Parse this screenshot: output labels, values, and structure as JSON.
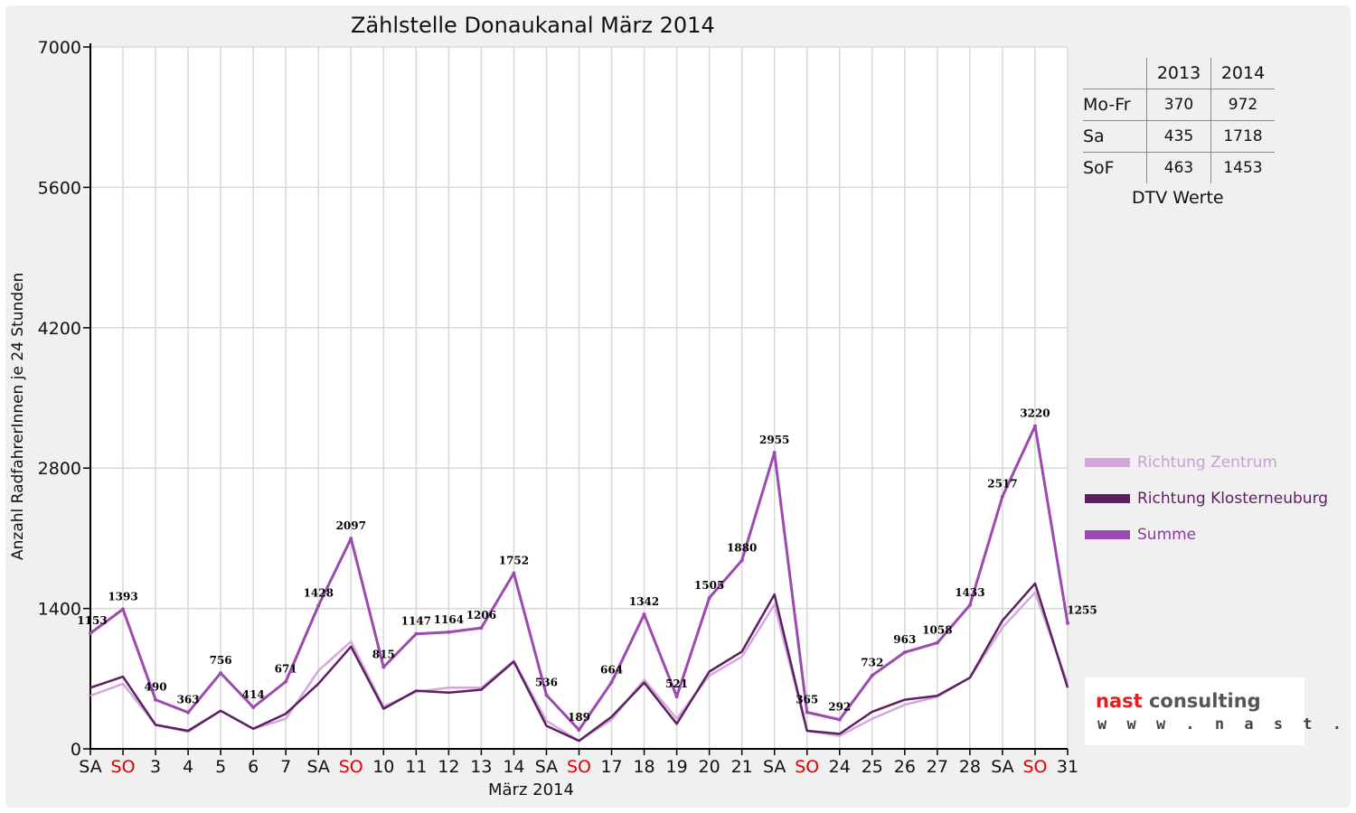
{
  "chart_data": {
    "type": "line",
    "title": "Zählstelle Donaukanal März 2014",
    "xlabel": "März 2014",
    "ylabel": "Anzahl RadfahrerInnen je 24 Stunden",
    "ylim": [
      0,
      7000
    ],
    "yticks": [
      "0",
      "1400",
      "2800",
      "4200",
      "5600",
      "7000"
    ],
    "grid": true,
    "legend_position": "right",
    "categories": [
      "SA",
      "SO",
      "3",
      "4",
      "5",
      "6",
      "7",
      "SA",
      "SO",
      "10",
      "11",
      "12",
      "13",
      "14",
      "SA",
      "SO",
      "17",
      "18",
      "19",
      "20",
      "21",
      "SA",
      "SO",
      "24",
      "25",
      "26",
      "27",
      "28",
      "SA",
      "SO",
      "31"
    ],
    "sunday_color": "#e00000",
    "series": [
      {
        "name": "Richtung Zentrum",
        "color": "#d4a8dc",
        "values": [
          530,
          650,
          240,
          170,
          380,
          200,
          300,
          780,
          1070,
          420,
          570,
          610,
          610,
          880,
          280,
          80,
          290,
          690,
          300,
          730,
          920,
          1440,
          180,
          130,
          300,
          440,
          520,
          710,
          1210,
          1560,
          650
        ]
      },
      {
        "name": "Richtung Klosterneuburg",
        "color": "#5c1f60",
        "values": [
          610,
          720,
          240,
          180,
          380,
          200,
          350,
          650,
          1020,
          400,
          580,
          560,
          590,
          870,
          230,
          80,
          320,
          660,
          250,
          770,
          970,
          1540,
          180,
          150,
          370,
          490,
          530,
          710,
          1280,
          1650,
          610
        ]
      },
      {
        "name": "Summe",
        "color": "#9c4ab0",
        "values": [
          1153,
          1393,
          490,
          363,
          756,
          414,
          671,
          1428,
          2097,
          815,
          1147,
          1164,
          1206,
          1752,
          536,
          189,
          664,
          1342,
          521,
          1505,
          1880,
          2955,
          365,
          292,
          732,
          963,
          1058,
          1433,
          2517,
          3220,
          1255
        ]
      }
    ],
    "data_labels": [
      "1153",
      "1393",
      "490",
      "363",
      "756",
      "414",
      "671",
      "1428",
      "2097",
      "815",
      "1147",
      "1164",
      "1206",
      "1752",
      "536",
      "189",
      "664",
      "1342",
      "521",
      "1505",
      "1880",
      "2955",
      "365",
      "292",
      "732",
      "963",
      "1058",
      "1433",
      "2517",
      "3220",
      "1255"
    ]
  },
  "dtv": {
    "caption": "DTV Werte",
    "years": [
      "2013",
      "2014"
    ],
    "rows": [
      {
        "label": "Mo-Fr",
        "v2013": "370",
        "v2014": "972"
      },
      {
        "label": "Sa",
        "v2013": "435",
        "v2014": "1718"
      },
      {
        "label": "SoF",
        "v2013": "463",
        "v2014": "1453"
      }
    ]
  },
  "logo": {
    "brand": "nast",
    "brand_rest": "consulting",
    "url": "w w w . n a s t . a t",
    "brand_color": "#e02020",
    "rest_color": "#555555"
  }
}
